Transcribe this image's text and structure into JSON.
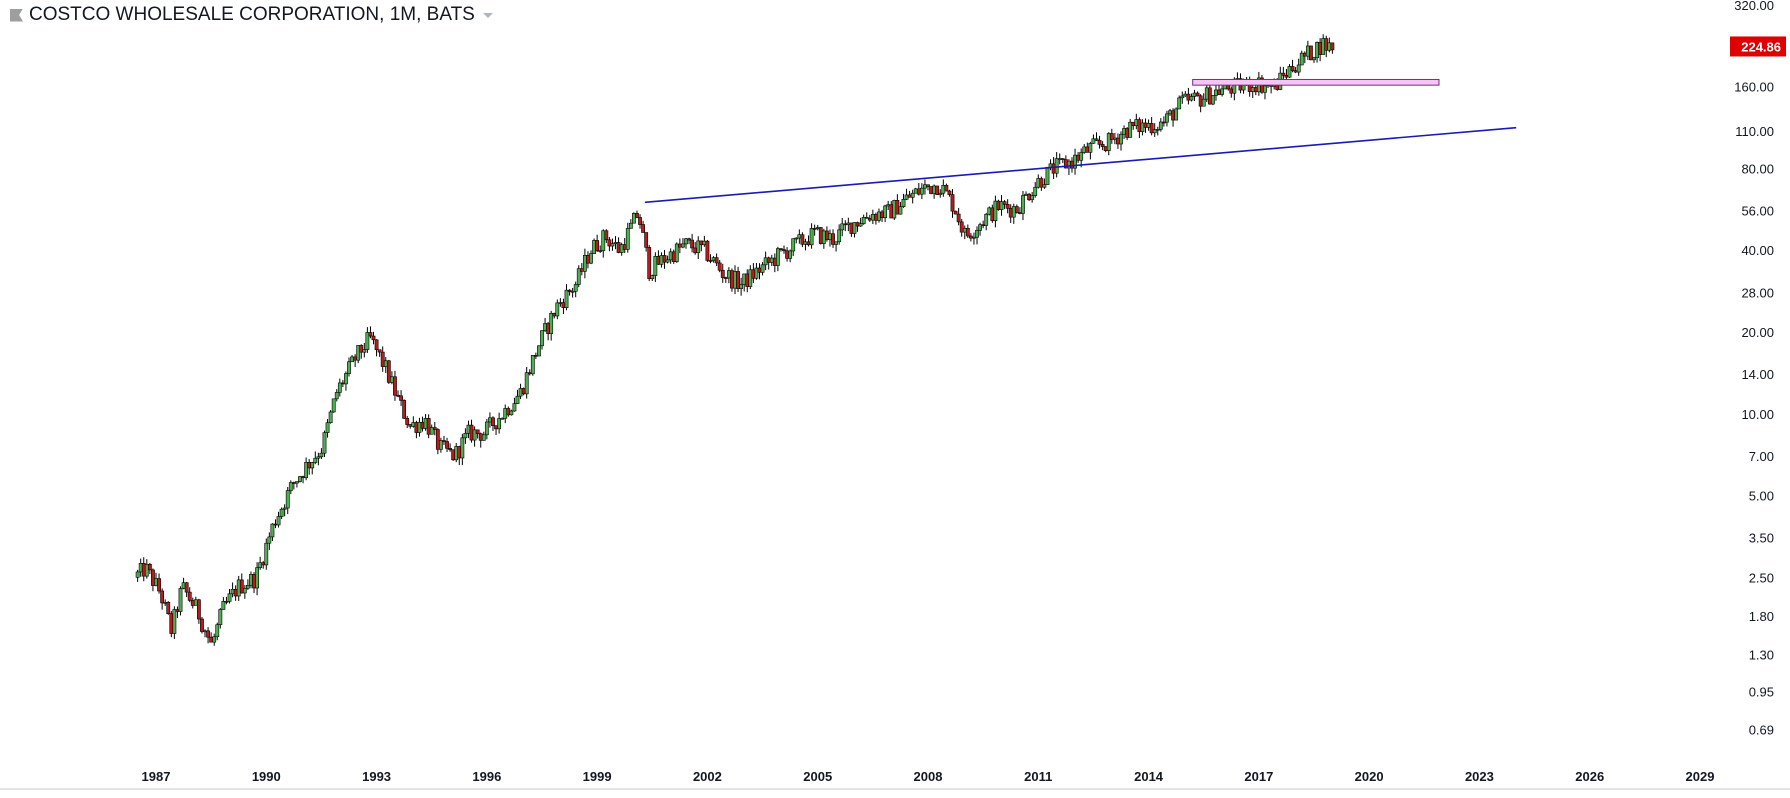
{
  "legend": {
    "symbol_label": "COSTCO WHOLESALE CORPORATION, 1M, BATS"
  },
  "colors": {
    "up_candle": "#4caf50",
    "down_candle": "#b71c1c",
    "wick": "#000000",
    "trendline": "#1a1ab8",
    "zone_fill": "#f5c6f5",
    "zone_stroke": "#7a2a7a",
    "last_price_bg": "#e00000",
    "axis_text": "#131722"
  },
  "chart_data": {
    "type": "candlestick",
    "title": "COSTCO WHOLESALE CORPORATION, 1M, BATS",
    "y_scale": "log",
    "ylim": [
      0.6,
      340
    ],
    "xlim": [
      1985.8,
      2031.0
    ],
    "grid": false,
    "y_tick_labels": [
      "320.00",
      "160.00",
      "110.00",
      "80.00",
      "56.00",
      "40.00",
      "28.00",
      "20.00",
      "14.00",
      "10.00",
      "7.00",
      "5.00",
      "3.50",
      "2.50",
      "1.80",
      "1.30",
      "0.95",
      "0.69"
    ],
    "x_tick_labels": [
      "1987",
      "1990",
      "1993",
      "1996",
      "1999",
      "2002",
      "2005",
      "2008",
      "2011",
      "2014",
      "2017",
      "2020",
      "2023",
      "2026",
      "2029"
    ],
    "last_price": "224.86",
    "price_path": [
      [
        1986.5,
        2.5
      ],
      [
        1986.8,
        2.7
      ],
      [
        1987.2,
        2.2
      ],
      [
        1987.5,
        1.6
      ],
      [
        1987.8,
        2.3
      ],
      [
        1988.2,
        1.9
      ],
      [
        1988.6,
        1.4
      ],
      [
        1988.9,
        1.9
      ],
      [
        1989.3,
        2.3
      ],
      [
        1989.8,
        2.5
      ],
      [
        1990.3,
        4.0
      ],
      [
        1990.8,
        5.5
      ],
      [
        1991.2,
        6.5
      ],
      [
        1991.6,
        7.5
      ],
      [
        1992.0,
        12.0
      ],
      [
        1992.5,
        16.0
      ],
      [
        1992.9,
        19.0
      ],
      [
        1993.3,
        15.0
      ],
      [
        1993.7,
        11.0
      ],
      [
        1994.0,
        9.0
      ],
      [
        1994.4,
        9.5
      ],
      [
        1994.8,
        7.5
      ],
      [
        1995.2,
        7.0
      ],
      [
        1995.6,
        8.5
      ],
      [
        1996.0,
        8.5
      ],
      [
        1996.5,
        10.0
      ],
      [
        1997.0,
        12.0
      ],
      [
        1997.5,
        18.0
      ],
      [
        1998.0,
        25.0
      ],
      [
        1998.5,
        30.0
      ],
      [
        1998.9,
        40.0
      ],
      [
        1999.3,
        45.0
      ],
      [
        1999.7,
        40.0
      ],
      [
        2000.2,
        55.0
      ],
      [
        2000.5,
        34.0
      ],
      [
        2001.0,
        38.0
      ],
      [
        2001.5,
        42.0
      ],
      [
        2002.0,
        40.0
      ],
      [
        2002.5,
        33.0
      ],
      [
        2003.0,
        30.0
      ],
      [
        2003.5,
        34.0
      ],
      [
        2004.0,
        38.0
      ],
      [
        2004.5,
        42.0
      ],
      [
        2005.0,
        46.0
      ],
      [
        2005.5,
        44.0
      ],
      [
        2006.0,
        50.0
      ],
      [
        2006.5,
        54.0
      ],
      [
        2007.0,
        55.0
      ],
      [
        2007.5,
        62.0
      ],
      [
        2008.0,
        68.0
      ],
      [
        2008.4,
        70.0
      ],
      [
        2008.8,
        58.0
      ],
      [
        2009.1,
        45.0
      ],
      [
        2009.6,
        52.0
      ],
      [
        2010.0,
        58.0
      ],
      [
        2010.5,
        57.0
      ],
      [
        2011.0,
        70.0
      ],
      [
        2011.5,
        80.0
      ],
      [
        2012.0,
        85.0
      ],
      [
        2012.5,
        95.0
      ],
      [
        2013.0,
        100.0
      ],
      [
        2013.5,
        112.0
      ],
      [
        2014.0,
        115.0
      ],
      [
        2014.5,
        118.0
      ],
      [
        2015.0,
        140.0
      ],
      [
        2015.5,
        145.0
      ],
      [
        2016.0,
        155.0
      ],
      [
        2016.5,
        160.0
      ],
      [
        2017.0,
        165.0
      ],
      [
        2017.5,
        160.0
      ],
      [
        2018.0,
        190.0
      ],
      [
        2018.5,
        215.0
      ],
      [
        2018.8,
        230.0
      ],
      [
        2019.0,
        224.86
      ]
    ],
    "trendline": {
      "from": [
        2000.3,
        60.0
      ],
      "to": [
        2024.0,
        113.0
      ]
    },
    "zone": {
      "from_x": 2015.2,
      "to_x": 2021.9,
      "y_low": 162.0,
      "y_high": 170.0
    }
  }
}
